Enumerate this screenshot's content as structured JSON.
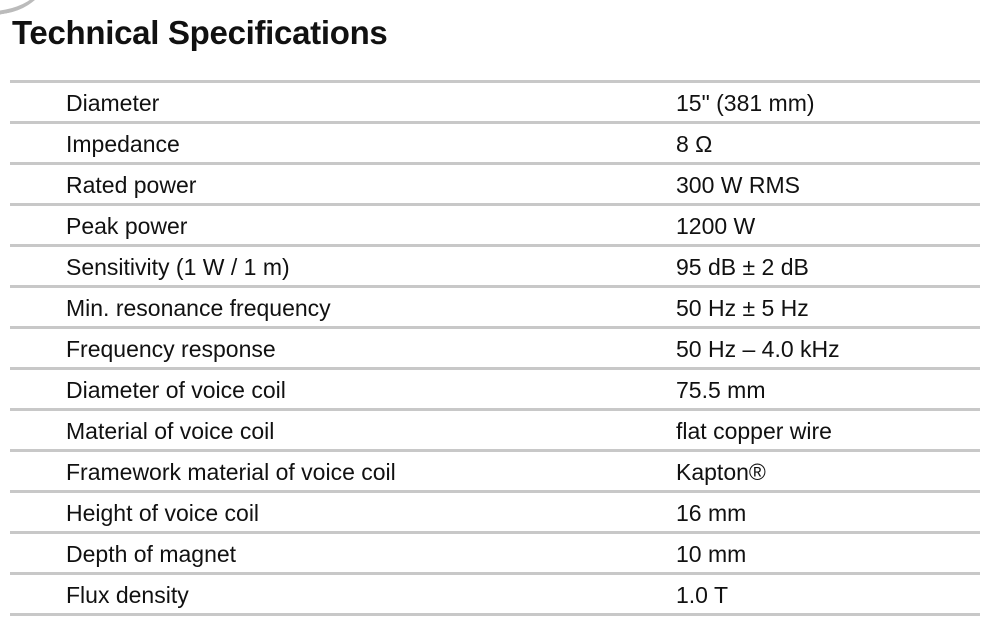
{
  "title": "Technical Specifications",
  "rows": [
    {
      "label": "Diameter",
      "value": "15\" (381 mm)"
    },
    {
      "label": "Impedance",
      "value": "8 Ω"
    },
    {
      "label": "Rated power",
      "value": "300 W RMS"
    },
    {
      "label": "Peak power",
      "value": "1200 W"
    },
    {
      "label": "Sensitivity (1 W / 1 m)",
      "value": "95 dB ± 2 dB"
    },
    {
      "label": "Min. resonance frequency",
      "value": "50 Hz ± 5 Hz"
    },
    {
      "label": "Frequency response",
      "value": "50 Hz – 4.0 kHz"
    },
    {
      "label": "Diameter of voice coil",
      "value": "75.5 mm"
    },
    {
      "label": "Material of voice coil",
      "value": "flat copper wire"
    },
    {
      "label": "Framework material of voice coil",
      "value": "Kapton®"
    },
    {
      "label": "Height of voice coil",
      "value": "16 mm"
    },
    {
      "label": "Depth of magnet",
      "value": "10 mm"
    },
    {
      "label": "Flux density",
      "value": "1.0 T"
    }
  ]
}
